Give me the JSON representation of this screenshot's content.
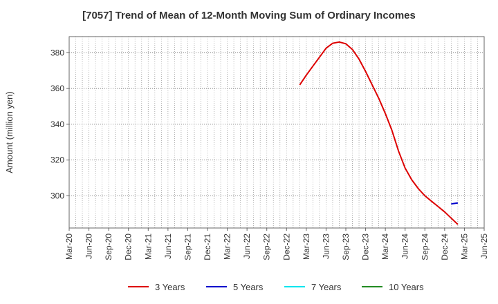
{
  "chart_data": {
    "type": "line",
    "title": "[7057]  Trend of Mean of 12-Month Moving Sum of Ordinary Incomes",
    "ylabel": "Amount (million yen)",
    "xlabel": "",
    "x_tick_labels": [
      "Mar-20",
      "Jun-20",
      "Sep-20",
      "Dec-20",
      "Mar-21",
      "Jun-21",
      "Sep-21",
      "Dec-21",
      "Mar-22",
      "Jun-22",
      "Sep-22",
      "Dec-22",
      "Mar-23",
      "Jun-23",
      "Sep-23",
      "Dec-23",
      "Mar-24",
      "Jun-24",
      "Sep-24",
      "Dec-24",
      "Mar-25",
      "Jun-25"
    ],
    "y_ticks": [
      300,
      320,
      340,
      360,
      380
    ],
    "ylim": [
      282,
      389
    ],
    "grid": true,
    "legend_position": "bottom",
    "series": [
      {
        "name": "3 Years",
        "color": "#dd0000",
        "points": [
          [
            "2023-02",
            362
          ],
          [
            "2023-03",
            367.5
          ],
          [
            "2023-04",
            372.5
          ],
          [
            "2023-05",
            377.5
          ],
          [
            "2023-06",
            382.5
          ],
          [
            "2023-07",
            385.3
          ],
          [
            "2023-08",
            386
          ],
          [
            "2023-09",
            385
          ],
          [
            "2023-10",
            381.8
          ],
          [
            "2023-11",
            376.5
          ],
          [
            "2023-12",
            369.5
          ],
          [
            "2024-01",
            362
          ],
          [
            "2024-02",
            354.5
          ],
          [
            "2024-03",
            346
          ],
          [
            "2024-04",
            336.5
          ],
          [
            "2024-05",
            325
          ],
          [
            "2024-06",
            315.5
          ],
          [
            "2024-07",
            309
          ],
          [
            "2024-08",
            304
          ],
          [
            "2024-09",
            300
          ],
          [
            "2024-10",
            297
          ],
          [
            "2024-11",
            294
          ],
          [
            "2024-12",
            291
          ],
          [
            "2025-01",
            287.5
          ],
          [
            "2025-02",
            284
          ]
        ]
      },
      {
        "name": "5 Years",
        "color": "#0000cc",
        "points": [
          [
            "2025-01",
            295.5
          ],
          [
            "2025-02",
            296
          ]
        ]
      },
      {
        "name": "7 Years",
        "color": "#00e5ee",
        "points": []
      },
      {
        "name": "10 Years",
        "color": "#228b22",
        "points": []
      }
    ]
  }
}
